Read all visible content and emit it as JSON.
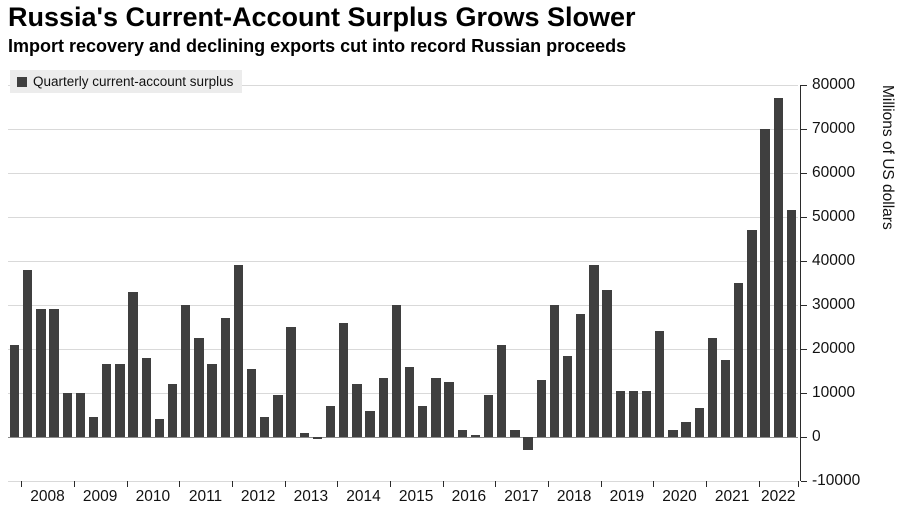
{
  "header": {
    "title": "Russia's Current-Account Surplus Grows Slower",
    "subtitle": "Import recovery and declining exports cut into record Russian proceeds"
  },
  "legend": {
    "label": "Quarterly current-account surplus",
    "marker_color": "#3f3f3f"
  },
  "chart_data": {
    "type": "bar",
    "title": "Russia's Current-Account Surplus Grows Slower",
    "subtitle": "Import recovery and declining exports cut into record Russian proceeds",
    "ylabel": "Millions of US dollars",
    "xlabel": "",
    "ylim": [
      -10000,
      80000
    ],
    "yticks": [
      -10000,
      0,
      10000,
      20000,
      30000,
      40000,
      50000,
      60000,
      70000,
      80000
    ],
    "grid": true,
    "legend_position": "top-left",
    "bar_color": "#3f3f3f",
    "x_year_labels": [
      "2008",
      "2009",
      "2010",
      "2011",
      "2012",
      "2013",
      "2014",
      "2015",
      "2016",
      "2017",
      "2018",
      "2019",
      "2020",
      "2021",
      "2022"
    ],
    "quarters": [
      "2007 Q4",
      "2008 Q1",
      "2008 Q2",
      "2008 Q3",
      "2008 Q4",
      "2009 Q1",
      "2009 Q2",
      "2009 Q3",
      "2009 Q4",
      "2010 Q1",
      "2010 Q2",
      "2010 Q3",
      "2010 Q4",
      "2011 Q1",
      "2011 Q2",
      "2011 Q3",
      "2011 Q4",
      "2012 Q1",
      "2012 Q2",
      "2012 Q3",
      "2012 Q4",
      "2013 Q1",
      "2013 Q2",
      "2013 Q3",
      "2013 Q4",
      "2014 Q1",
      "2014 Q2",
      "2014 Q3",
      "2014 Q4",
      "2015 Q1",
      "2015 Q2",
      "2015 Q3",
      "2015 Q4",
      "2016 Q1",
      "2016 Q2",
      "2016 Q3",
      "2016 Q4",
      "2017 Q1",
      "2017 Q2",
      "2017 Q3",
      "2017 Q4",
      "2018 Q1",
      "2018 Q2",
      "2018 Q3",
      "2018 Q4",
      "2019 Q1",
      "2019 Q2",
      "2019 Q3",
      "2019 Q4",
      "2020 Q1",
      "2020 Q2",
      "2020 Q3",
      "2020 Q4",
      "2021 Q1",
      "2021 Q2",
      "2021 Q3",
      "2021 Q4",
      "2022 Q1",
      "2022 Q2",
      "2022 Q3"
    ],
    "values": [
      21000,
      38000,
      29000,
      29000,
      10000,
      10000,
      4500,
      16500,
      16500,
      33000,
      18000,
      4000,
      12000,
      30000,
      22500,
      16500,
      27000,
      39000,
      15500,
      4500,
      9500,
      25000,
      1000,
      -500,
      7000,
      26000,
      12000,
      6000,
      13500,
      30000,
      16000,
      7000,
      13500,
      12500,
      1500,
      500,
      9500,
      21000,
      1500,
      -3000,
      13000,
      30000,
      18500,
      28000,
      39000,
      33500,
      10500,
      10500,
      10500,
      24000,
      1500,
      3500,
      6500,
      22500,
      17500,
      35000,
      47000,
      70000,
      77000,
      51500
    ]
  }
}
